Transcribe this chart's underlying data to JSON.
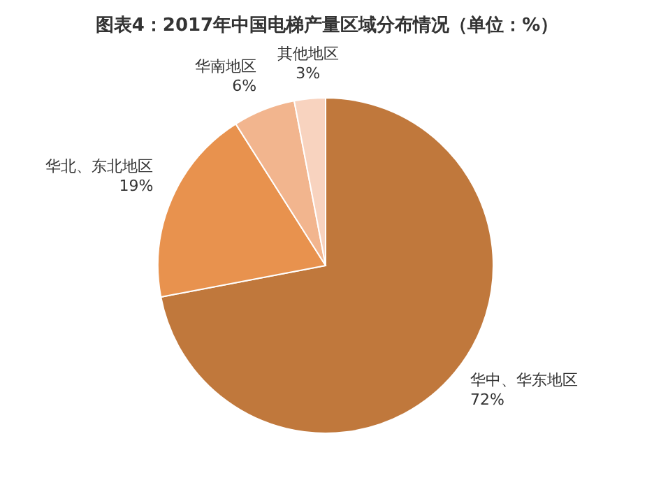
{
  "chart_data": {
    "type": "pie",
    "title": "图表4：2017年中国电梯产量区域分布情况（单位：%）",
    "categories": [
      "华中、华东地区",
      "华北、东北地区",
      "华南地区",
      "其他地区"
    ],
    "values": [
      72,
      19,
      6,
      3
    ],
    "value_labels": [
      "72%",
      "19%",
      "6%",
      "3%"
    ],
    "colors": [
      "#c0783c",
      "#e8924e",
      "#f2b58e",
      "#f8d3bf"
    ],
    "legend": false
  }
}
